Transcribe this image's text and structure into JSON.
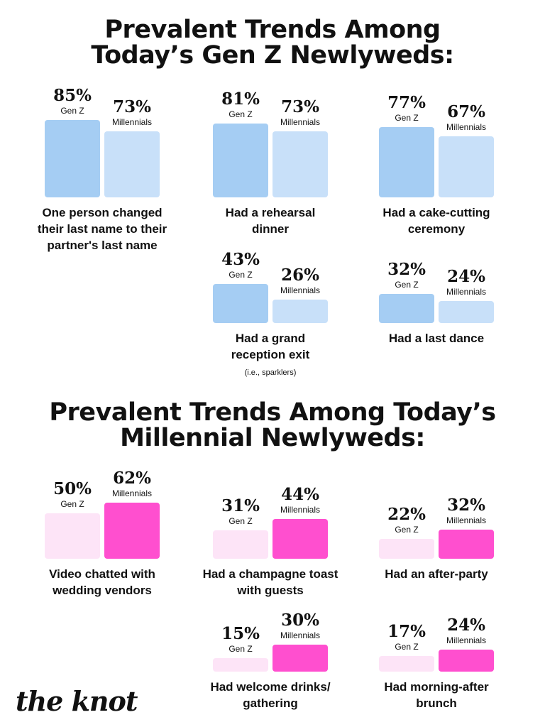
{
  "sections": [
    {
      "title": "Prevalent Trends Among\nToday’s Gen Z Newlyweds:",
      "colors": {
        "genz": "#a5cdf3",
        "mill": "#c8e0f9"
      }
    },
    {
      "title": "Prevalent Trends Among Today’s\nMillennial Newlyweds:",
      "colors": {
        "genz": "#fde4f7",
        "mill": "#ff4fcf"
      }
    }
  ],
  "series_labels": {
    "genz": "Gen Z",
    "mill": "Millennials"
  },
  "chart_data": [
    {
      "type": "bar",
      "title": "Prevalent Trends Among Today’s Gen Z Newlyweds:",
      "series": [
        {
          "name": "Gen Z",
          "values": [
            85,
            81,
            77,
            43,
            32
          ]
        },
        {
          "name": "Millennials",
          "values": [
            73,
            73,
            67,
            26,
            24
          ]
        }
      ],
      "categories": [
        "One person changed their last name to their partner's last name",
        "Had a rehearsal dinner",
        "Had a cake-cutting ceremony",
        "Had a grand reception exit",
        "Had a last dance"
      ],
      "value_labels": {
        "genz": [
          "85%",
          "81%",
          "77%",
          "43%",
          "32%"
        ],
        "mill": [
          "73%",
          "73%",
          "67%",
          "26%",
          "24%"
        ]
      },
      "label_lines": [
        "One person changed\ntheir last name to their\npartner's last name",
        "Had a rehearsal\ndinner",
        "Had a cake-cutting\nceremony",
        "Had a grand\nreception exit",
        "Had a last dance"
      ],
      "notes": [
        "",
        "",
        "",
        "(i.e., sparklers)",
        ""
      ]
    },
    {
      "type": "bar",
      "title": "Prevalent Trends Among Today’s Millennial Newlyweds:",
      "series": [
        {
          "name": "Gen Z",
          "values": [
            50,
            31,
            22,
            15,
            17
          ]
        },
        {
          "name": "Millennials",
          "values": [
            62,
            44,
            32,
            30,
            24
          ]
        }
      ],
      "categories": [
        "Video chatted with wedding vendors",
        "Had a champagne toast with guests",
        "Had an after-party",
        "Had welcome drinks/ gathering",
        "Had morning-after brunch"
      ],
      "value_labels": {
        "genz": [
          "50%",
          "31%",
          "22%",
          "15%",
          "17%"
        ],
        "mill": [
          "62%",
          "44%",
          "32%",
          "30%",
          "24%"
        ]
      },
      "label_lines": [
        "Video chatted with\nwedding vendors",
        "Had a champagne toast\nwith guests",
        "Had an after-party",
        "Had welcome drinks/\ngathering",
        "Had morning-after\nbrunch"
      ],
      "notes": [
        "",
        "",
        "",
        "",
        ""
      ]
    }
  ],
  "logo": "the knot"
}
